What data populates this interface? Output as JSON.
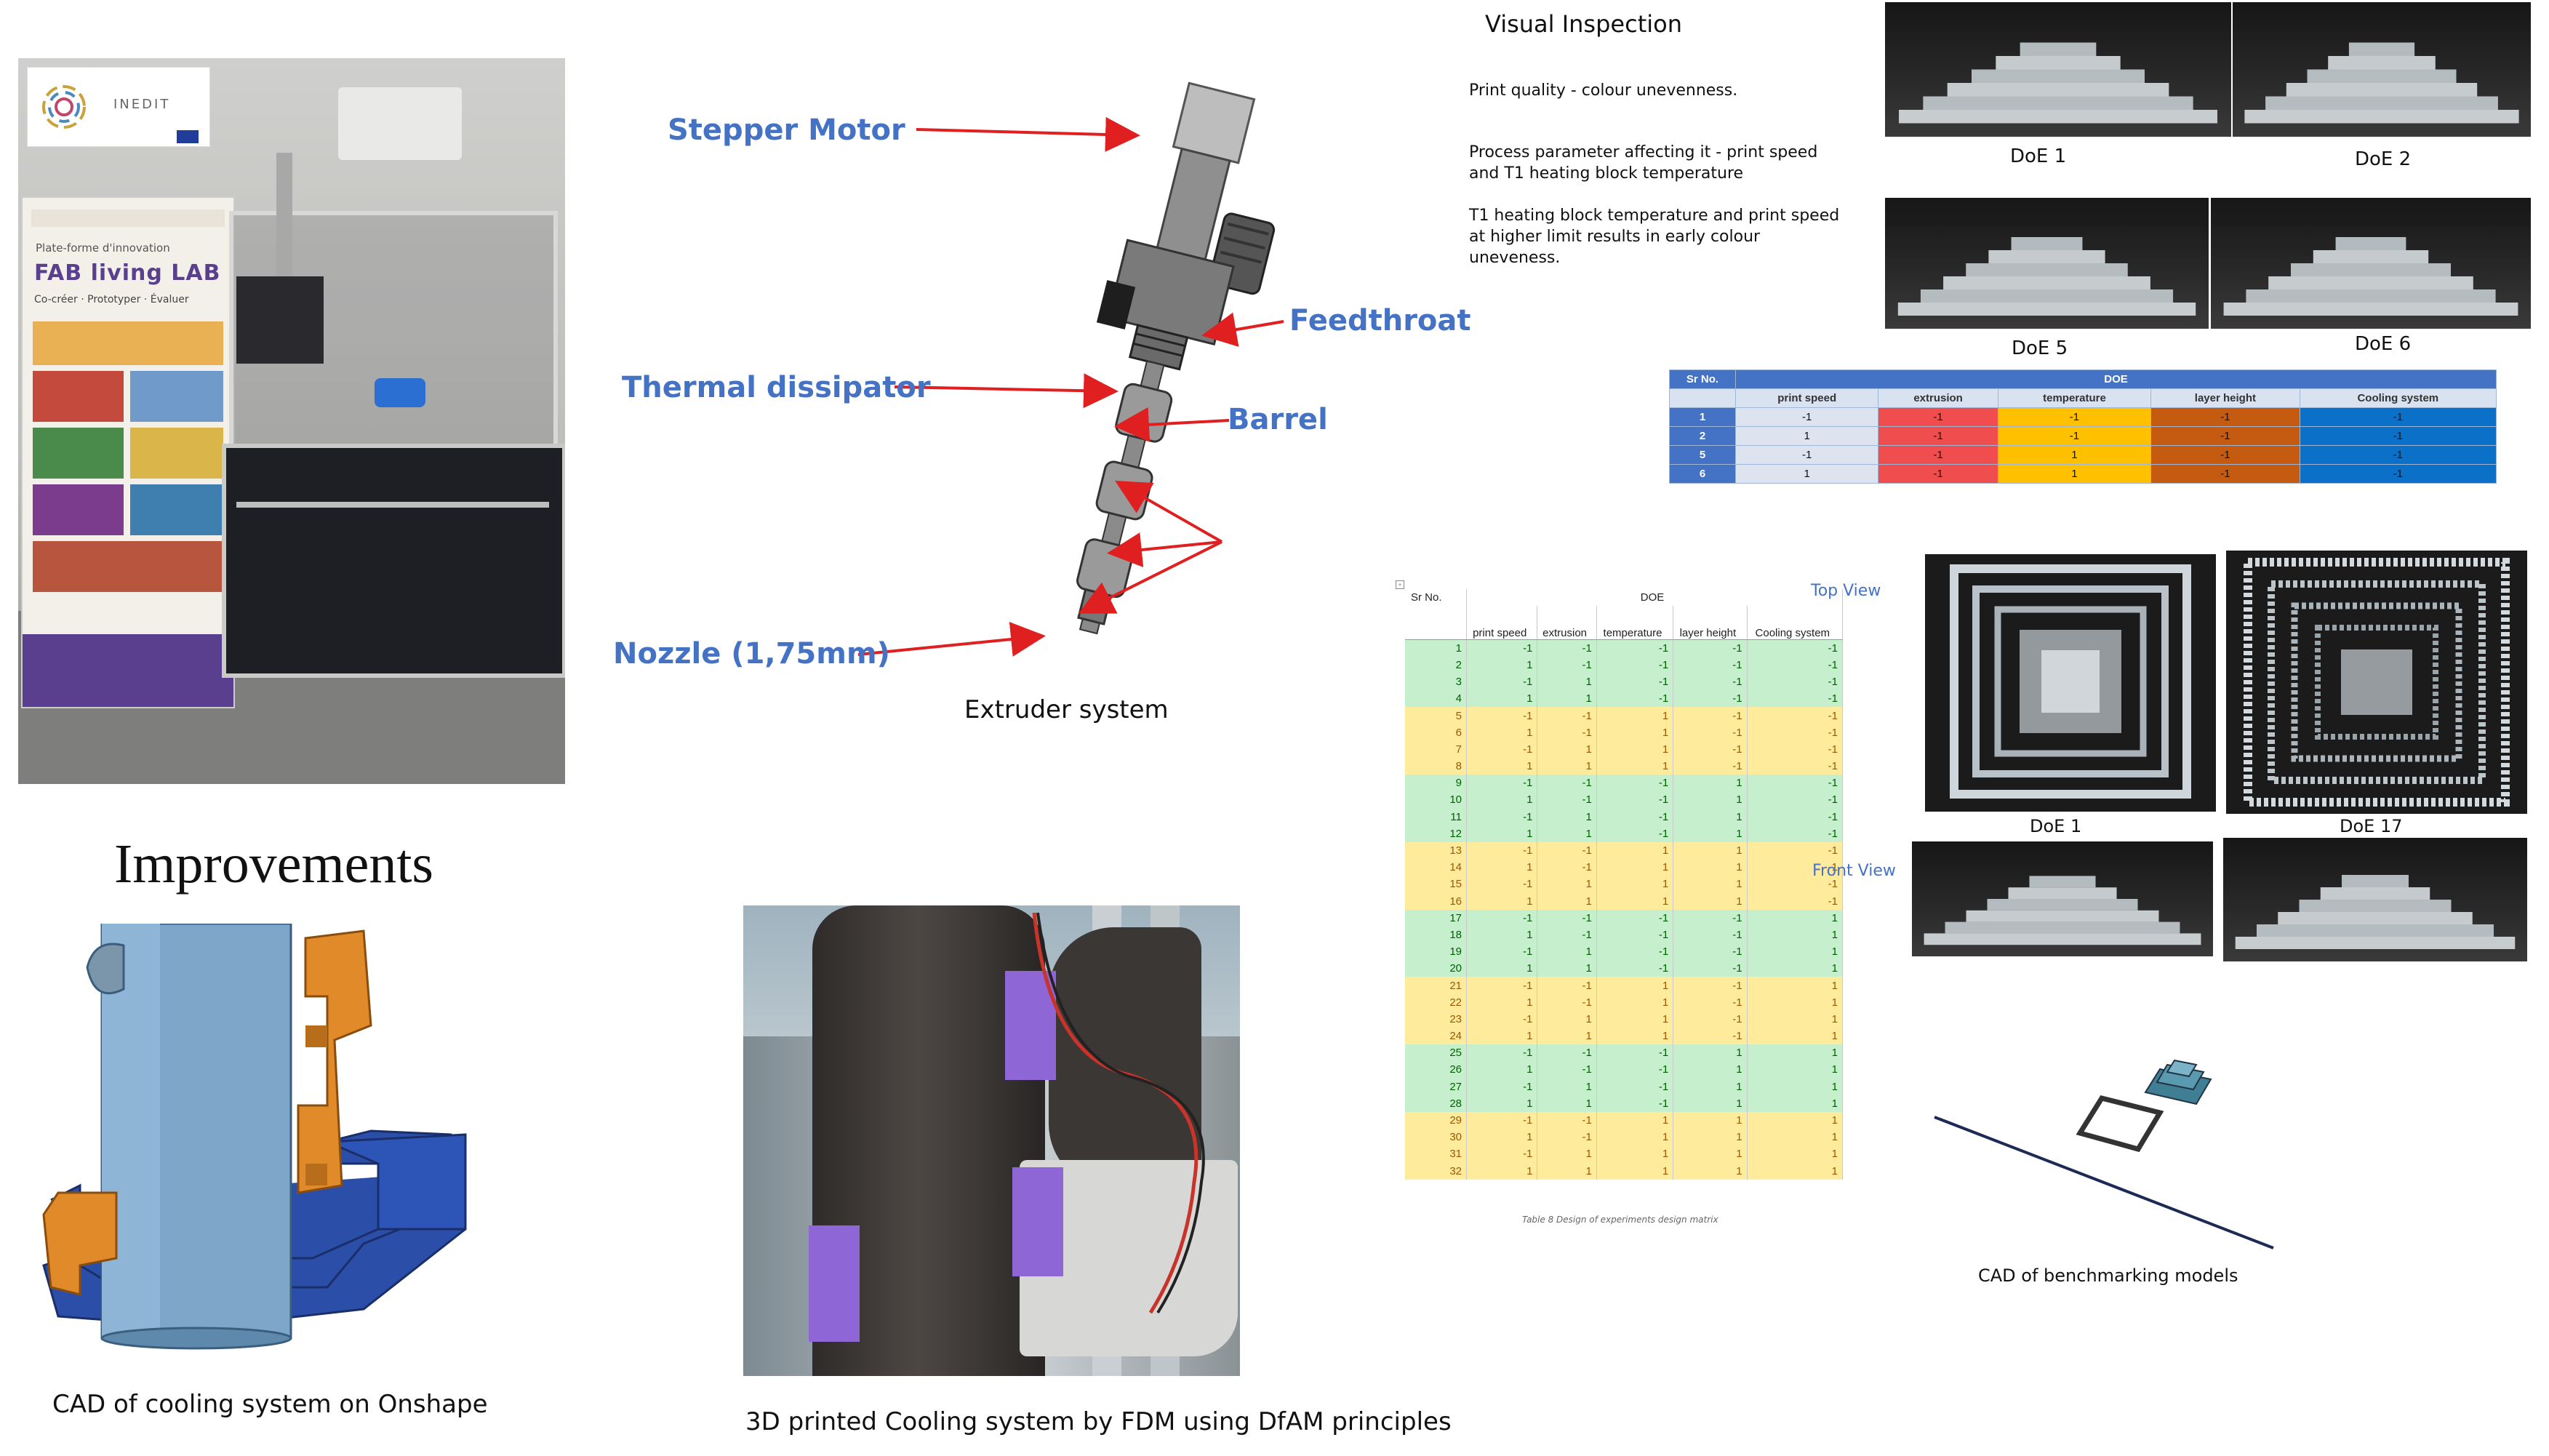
{
  "extruder": {
    "labels": {
      "stepper_motor": "Stepper Motor",
      "feedthroat": "Feedthroat",
      "thermal_dissipator": "Thermal dissipator",
      "barrel": "Barrel",
      "nozzle": "Nozzle (1,75mm)"
    },
    "caption": "Extruder system"
  },
  "poster": {
    "brand": "INEDIT",
    "line1": "Plate-forme d'innovation",
    "logo_text": "FAB living LAB",
    "line2": "Co-créer · Prototyper · Évaluer"
  },
  "improvements_title": "Improvements",
  "cad_cooling_caption": "CAD of cooling system on Onshape",
  "printed_cooling_caption": "3D printed Cooling system by FDM using DfAM principles",
  "visual_inspection": {
    "title": "Visual Inspection",
    "p1": "Print quality - colour unevenness.",
    "p2_line1": "Process parameter affecting it - print speed",
    "p2_line2": "and T1 heating block temperature",
    "p3_line1": "T1 heating block temperature and print speed",
    "p3_line2": "at higher limit results in early colour",
    "p3_line3": "uneveness."
  },
  "doe_photos": {
    "doe1": "DoE 1",
    "doe2": "DoE 2",
    "doe5": "DoE 5",
    "doe6": "DoE 6"
  },
  "doe_small_table": {
    "sr_header": "Sr No.",
    "doe_header": "DOE",
    "columns": [
      "print speed",
      "extrusion",
      "temperature",
      "layer height",
      "Cooling system"
    ],
    "rows": [
      {
        "sr": "1",
        "values": [
          "-1",
          "-1",
          "-1",
          "-1",
          "-1"
        ]
      },
      {
        "sr": "2",
        "values": [
          "1",
          "-1",
          "-1",
          "-1",
          "-1"
        ]
      },
      {
        "sr": "5",
        "values": [
          "-1",
          "-1",
          "1",
          "-1",
          "-1"
        ]
      },
      {
        "sr": "6",
        "values": [
          "1",
          "-1",
          "1",
          "-1",
          "-1"
        ]
      }
    ]
  },
  "doe_matrix": {
    "sr_header": "Sr No.",
    "doe_header": "DOE",
    "columns": [
      "print speed",
      "extrusion",
      "temperature",
      "layer height",
      "Cooling system"
    ],
    "caption": "Table 8 Design of experiments design matrix",
    "rows": [
      [
        "1",
        "-1",
        "-1",
        "-1",
        "-1",
        "-1"
      ],
      [
        "2",
        "1",
        "-1",
        "-1",
        "-1",
        "-1"
      ],
      [
        "3",
        "-1",
        "1",
        "-1",
        "-1",
        "-1"
      ],
      [
        "4",
        "1",
        "1",
        "-1",
        "-1",
        "-1"
      ],
      [
        "5",
        "-1",
        "-1",
        "1",
        "-1",
        "-1"
      ],
      [
        "6",
        "1",
        "-1",
        "1",
        "-1",
        "-1"
      ],
      [
        "7",
        "-1",
        "1",
        "1",
        "-1",
        "-1"
      ],
      [
        "8",
        "1",
        "1",
        "1",
        "-1",
        "-1"
      ],
      [
        "9",
        "-1",
        "-1",
        "-1",
        "1",
        "-1"
      ],
      [
        "10",
        "1",
        "-1",
        "-1",
        "1",
        "-1"
      ],
      [
        "11",
        "-1",
        "1",
        "-1",
        "1",
        "-1"
      ],
      [
        "12",
        "1",
        "1",
        "-1",
        "1",
        "-1"
      ],
      [
        "13",
        "-1",
        "-1",
        "1",
        "1",
        "-1"
      ],
      [
        "14",
        "1",
        "-1",
        "1",
        "1",
        "-1"
      ],
      [
        "15",
        "-1",
        "1",
        "1",
        "1",
        "-1"
      ],
      [
        "16",
        "1",
        "1",
        "1",
        "1",
        "-1"
      ],
      [
        "17",
        "-1",
        "-1",
        "-1",
        "-1",
        "1"
      ],
      [
        "18",
        "1",
        "-1",
        "-1",
        "-1",
        "1"
      ],
      [
        "19",
        "-1",
        "1",
        "-1",
        "-1",
        "1"
      ],
      [
        "20",
        "1",
        "1",
        "-1",
        "-1",
        "1"
      ],
      [
        "21",
        "-1",
        "-1",
        "1",
        "-1",
        "1"
      ],
      [
        "22",
        "1",
        "-1",
        "1",
        "-1",
        "1"
      ],
      [
        "23",
        "-1",
        "1",
        "1",
        "-1",
        "1"
      ],
      [
        "24",
        "1",
        "1",
        "1",
        "-1",
        "1"
      ],
      [
        "25",
        "-1",
        "-1",
        "-1",
        "1",
        "1"
      ],
      [
        "26",
        "1",
        "-1",
        "-1",
        "1",
        "1"
      ],
      [
        "27",
        "-1",
        "1",
        "-1",
        "1",
        "1"
      ],
      [
        "28",
        "1",
        "1",
        "-1",
        "1",
        "1"
      ],
      [
        "29",
        "-1",
        "-1",
        "1",
        "1",
        "1"
      ],
      [
        "30",
        "1",
        "-1",
        "1",
        "1",
        "1"
      ],
      [
        "31",
        "-1",
        "1",
        "1",
        "1",
        "1"
      ],
      [
        "32",
        "1",
        "1",
        "1",
        "1",
        "1"
      ]
    ],
    "row_groups": [
      "g",
      "g",
      "g",
      "g",
      "y",
      "y",
      "y",
      "y",
      "g",
      "g",
      "g",
      "g",
      "y",
      "y",
      "y",
      "y",
      "g",
      "g",
      "g",
      "g",
      "y",
      "y",
      "y",
      "y",
      "g",
      "g",
      "g",
      "g",
      "y",
      "y",
      "y",
      "y"
    ]
  },
  "views": {
    "top_view": "Top View",
    "front_view": "Front View",
    "doe1": "DoE 1",
    "doe17": "DoE 17"
  },
  "cad_benchmark_caption": "CAD of benchmarking models",
  "colors": {
    "label_blue": "#4472c4",
    "arrow_red": "#e02020",
    "table_header_blue": "#4472c4"
  }
}
